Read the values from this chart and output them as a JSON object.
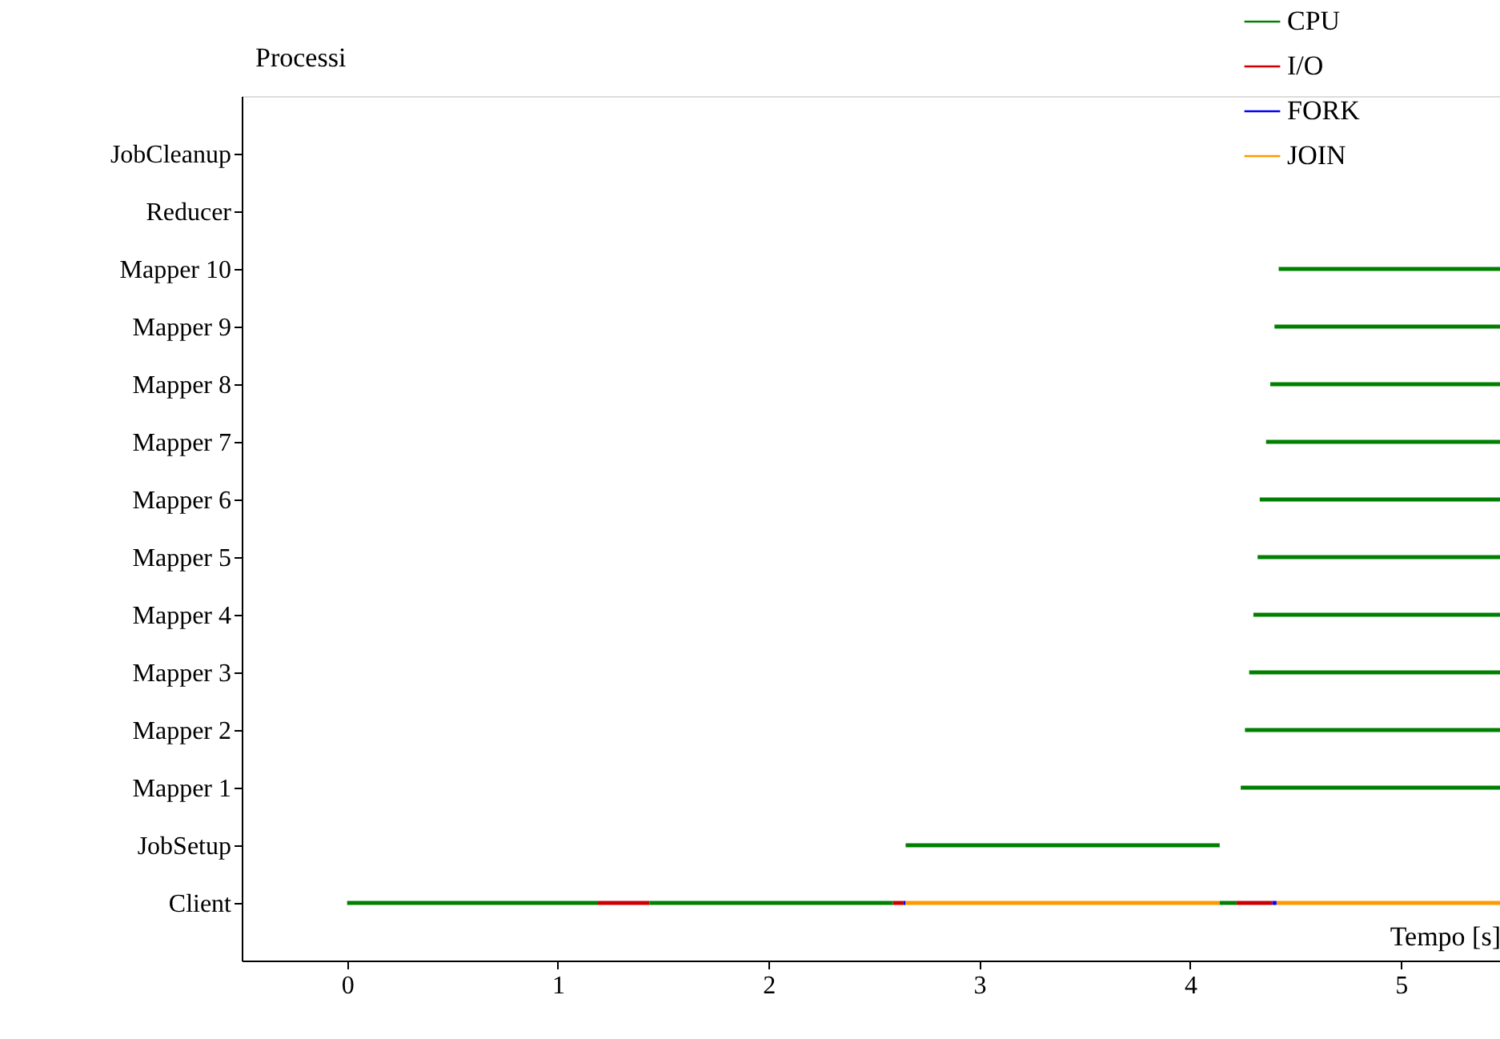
{
  "chart_data": {
    "type": "bar",
    "orientation": "horizontal",
    "xlabel": "Tempo [s]",
    "ylabel": "Processi",
    "categories": [
      "JobCleanup",
      "Reducer",
      "Mapper 10",
      "Mapper 9",
      "Mapper 8",
      "Mapper 7",
      "Mapper 6",
      "Mapper 5",
      "Mapper 4",
      "Mapper 3",
      "Mapper 2",
      "Mapper 1",
      "JobSetup",
      "Client"
    ],
    "xlim": [
      -0.5,
      5.47
    ],
    "xticks": [
      0,
      1,
      2,
      3,
      4,
      5
    ],
    "grid": false,
    "legend": "top right",
    "series": [
      {
        "name": "CPU",
        "color": "#008000",
        "base": [
          null,
          null,
          4.42,
          4.4,
          4.38,
          4.36,
          4.33,
          4.32,
          4.3,
          4.28,
          4.26,
          4.24,
          2.65,
          0
        ],
        "values": [
          null,
          null,
          1.05,
          1.07,
          1.09,
          1.11,
          1.14,
          1.15,
          1.17,
          1.19,
          1.21,
          1.23,
          1.49,
          1.19
        ]
      },
      {
        "name": "I/O",
        "color": "#cc0000",
        "base": [
          null,
          null,
          null,
          null,
          null,
          null,
          null,
          null,
          null,
          null,
          null,
          null,
          null,
          1.19
        ],
        "values": [
          null,
          null,
          null,
          null,
          null,
          null,
          null,
          null,
          null,
          null,
          null,
          null,
          null,
          0.245
        ]
      },
      {
        "name": "FORK",
        "color": "#0000ff",
        "base": [
          null,
          null,
          null,
          null,
          null,
          null,
          null,
          null,
          null,
          null,
          null,
          null,
          null,
          2.64
        ],
        "values": [
          null,
          null,
          null,
          null,
          null,
          null,
          null,
          null,
          null,
          null,
          null,
          null,
          null,
          0.01
        ]
      },
      {
        "name": "JOIN",
        "color": "#ff9900",
        "base": [
          null,
          null,
          null,
          null,
          null,
          null,
          null,
          null,
          null,
          null,
          null,
          null,
          null,
          2.65
        ],
        "values": [
          null,
          null,
          null,
          null,
          null,
          null,
          null,
          null,
          null,
          null,
          null,
          null,
          null,
          1.49
        ]
      },
      {
        "color": "#008000",
        "base": [
          null,
          null,
          null,
          null,
          null,
          null,
          null,
          null,
          null,
          null,
          null,
          null,
          null,
          1.435
        ],
        "values": [
          null,
          null,
          null,
          null,
          null,
          null,
          null,
          null,
          null,
          null,
          null,
          null,
          null,
          1.155
        ]
      },
      {
        "color": "#cc0000",
        "base": [
          null,
          null,
          null,
          null,
          null,
          null,
          null,
          null,
          null,
          null,
          null,
          null,
          null,
          2.59
        ],
        "values": [
          null,
          null,
          null,
          null,
          null,
          null,
          null,
          null,
          null,
          null,
          null,
          null,
          null,
          0.05
        ]
      },
      {
        "color": "#008000",
        "base": [
          null,
          null,
          null,
          null,
          null,
          null,
          null,
          null,
          null,
          null,
          null,
          null,
          null,
          4.14
        ],
        "values": [
          null,
          null,
          null,
          null,
          null,
          null,
          null,
          null,
          null,
          null,
          null,
          null,
          null,
          0.08
        ]
      },
      {
        "color": "#cc0000",
        "base": [
          null,
          null,
          null,
          null,
          null,
          null,
          null,
          null,
          null,
          null,
          null,
          null,
          null,
          4.22
        ],
        "values": [
          null,
          null,
          null,
          null,
          null,
          null,
          null,
          null,
          null,
          null,
          null,
          null,
          null,
          0.17
        ]
      },
      {
        "color": "#0000ff",
        "base": [
          null,
          null,
          null,
          null,
          null,
          null,
          null,
          null,
          null,
          null,
          null,
          null,
          null,
          4.39
        ],
        "values": [
          null,
          null,
          null,
          null,
          null,
          null,
          null,
          null,
          null,
          null,
          null,
          null,
          null,
          0.02
        ]
      },
      {
        "color": "#ff9900",
        "base": [
          null,
          null,
          null,
          null,
          null,
          null,
          null,
          null,
          null,
          null,
          null,
          null,
          null,
          4.41
        ],
        "values": [
          null,
          null,
          null,
          null,
          null,
          null,
          null,
          null,
          null,
          null,
          null,
          null,
          null,
          1.06
        ]
      }
    ]
  }
}
